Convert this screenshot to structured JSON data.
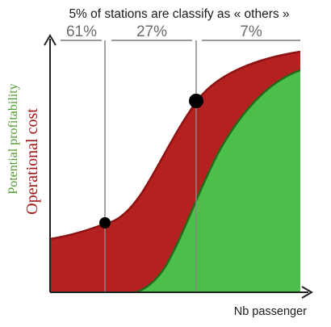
{
  "chart_data": {
    "type": "area",
    "title": "5% of stations are classify as « others »",
    "xlabel": "Nb passenger",
    "ylabels": {
      "cost": "Operational cost",
      "profitability": "Potential profitability"
    },
    "segments": [
      {
        "label": "61%"
      },
      {
        "label": "27%"
      },
      {
        "label": "7%"
      }
    ],
    "series": [
      {
        "name": "Operational cost",
        "color": "#b52020"
      },
      {
        "name": "Potential profitability",
        "color": "#4cbf4a"
      }
    ],
    "colors": {
      "cost_fill": "#b52020",
      "cost_stroke": "#8e1212",
      "profit_fill": "#4cbf4a",
      "profit_stroke": "#1f6b1a",
      "axis": "#222222",
      "divider": "#888888"
    }
  }
}
